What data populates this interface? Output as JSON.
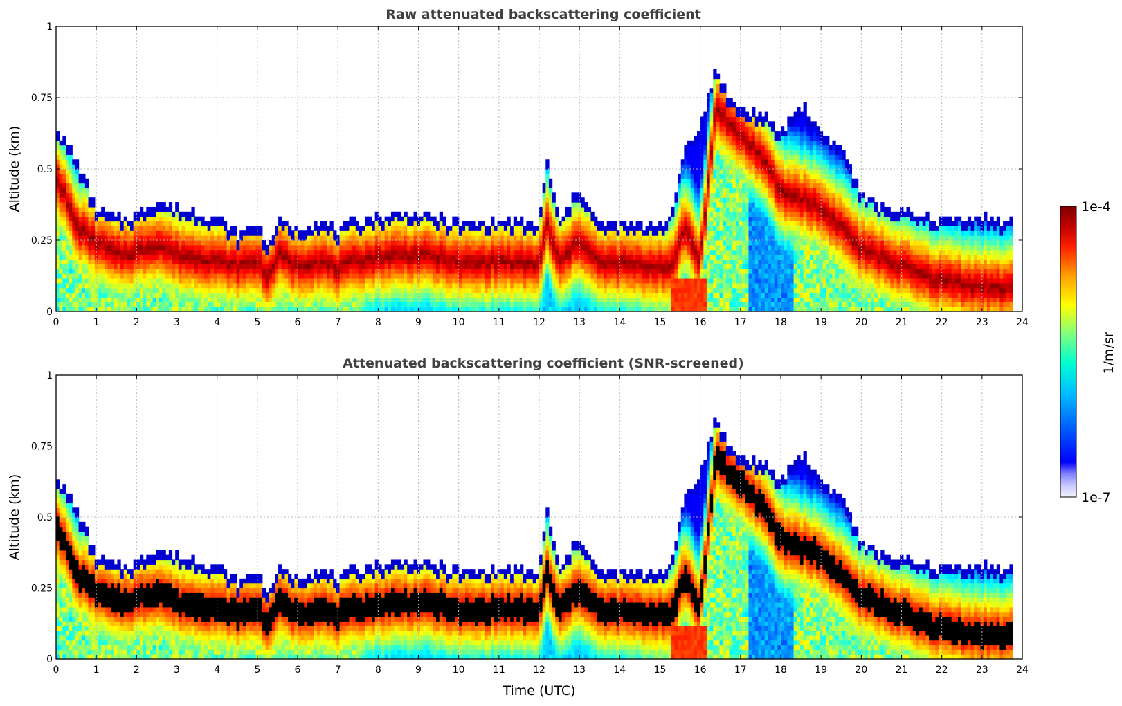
{
  "chart_data": [
    {
      "type": "heatmap",
      "title": "Raw attenuated backscattering coefficient",
      "xlabel": "",
      "ylabel": "Altitude (km)",
      "xlim": [
        0,
        24
      ],
      "ylim": [
        0,
        1
      ],
      "x_ticks": [
        "0",
        "1",
        "2",
        "3",
        "4",
        "5",
        "6",
        "7",
        "8",
        "9",
        "10",
        "11",
        "12",
        "13",
        "14",
        "15",
        "16",
        "17",
        "18",
        "19",
        "20",
        "21",
        "22",
        "23",
        "24"
      ],
      "y_ticks": [
        "0",
        "0.25",
        "0.5",
        "0.75",
        "1"
      ],
      "grid": true,
      "screened": false,
      "layer_top_km": [
        [
          0,
          0.62
        ],
        [
          0.5,
          0.5
        ],
        [
          1,
          0.33
        ],
        [
          1.5,
          0.3
        ],
        [
          2,
          0.31
        ],
        [
          2.5,
          0.36
        ],
        [
          3,
          0.33
        ],
        [
          3.5,
          0.32
        ],
        [
          4,
          0.3
        ],
        [
          4.5,
          0.24
        ],
        [
          5,
          0.28
        ],
        [
          5.3,
          0.2
        ],
        [
          5.5,
          0.29
        ],
        [
          6,
          0.26
        ],
        [
          6.5,
          0.29
        ],
        [
          7,
          0.25
        ],
        [
          7.5,
          0.29
        ],
        [
          8,
          0.3
        ],
        [
          8.5,
          0.32
        ],
        [
          9,
          0.31
        ],
        [
          9.5,
          0.3
        ],
        [
          10,
          0.28
        ],
        [
          10.5,
          0.28
        ],
        [
          11,
          0.29
        ],
        [
          11.5,
          0.28
        ],
        [
          12,
          0.28
        ],
        [
          12.2,
          0.5
        ],
        [
          12.5,
          0.28
        ],
        [
          13,
          0.4
        ],
        [
          13.5,
          0.27
        ],
        [
          14,
          0.28
        ],
        [
          14.5,
          0.27
        ],
        [
          15,
          0.28
        ],
        [
          15.3,
          0.3
        ],
        [
          15.6,
          0.55
        ],
        [
          16,
          0.62
        ],
        [
          16.4,
          0.83
        ],
        [
          16.7,
          0.72
        ],
        [
          17,
          0.68
        ],
        [
          17.5,
          0.66
        ],
        [
          18,
          0.6
        ],
        [
          18.5,
          0.7
        ],
        [
          19,
          0.6
        ],
        [
          19.5,
          0.55
        ],
        [
          20,
          0.38
        ],
        [
          20.5,
          0.34
        ],
        [
          21,
          0.32
        ],
        [
          21.5,
          0.3
        ],
        [
          22,
          0.29
        ],
        [
          22.5,
          0.3
        ],
        [
          23,
          0.3
        ],
        [
          23.7,
          0.28
        ]
      ],
      "peak_km": [
        [
          0,
          0.48
        ],
        [
          0.5,
          0.3
        ],
        [
          1,
          0.24
        ],
        [
          1.5,
          0.2
        ],
        [
          2,
          0.21
        ],
        [
          2.5,
          0.24
        ],
        [
          3,
          0.2
        ],
        [
          3.5,
          0.19
        ],
        [
          4,
          0.18
        ],
        [
          4.5,
          0.16
        ],
        [
          5,
          0.18
        ],
        [
          5.3,
          0.12
        ],
        [
          5.5,
          0.2
        ],
        [
          6,
          0.16
        ],
        [
          6.5,
          0.18
        ],
        [
          7,
          0.15
        ],
        [
          7.5,
          0.18
        ],
        [
          8,
          0.19
        ],
        [
          8.5,
          0.2
        ],
        [
          9,
          0.2
        ],
        [
          9.5,
          0.19
        ],
        [
          10,
          0.17
        ],
        [
          10.5,
          0.17
        ],
        [
          11,
          0.18
        ],
        [
          11.5,
          0.17
        ],
        [
          12,
          0.17
        ],
        [
          12.2,
          0.3
        ],
        [
          12.5,
          0.17
        ],
        [
          13,
          0.25
        ],
        [
          13.5,
          0.17
        ],
        [
          14,
          0.17
        ],
        [
          14.5,
          0.16
        ],
        [
          15,
          0.16
        ],
        [
          15.3,
          0.15
        ],
        [
          15.6,
          0.3
        ],
        [
          16,
          0.18
        ],
        [
          16.4,
          0.72
        ],
        [
          16.7,
          0.66
        ],
        [
          17,
          0.62
        ],
        [
          17.5,
          0.55
        ],
        [
          18,
          0.42
        ],
        [
          18.5,
          0.4
        ],
        [
          19,
          0.36
        ],
        [
          19.5,
          0.3
        ],
        [
          20,
          0.22
        ],
        [
          20.5,
          0.19
        ],
        [
          21,
          0.16
        ],
        [
          21.5,
          0.13
        ],
        [
          22,
          0.11
        ],
        [
          22.5,
          0.1
        ],
        [
          23,
          0.09
        ],
        [
          23.7,
          0.08
        ]
      ],
      "data_end_hour": 23.75
    },
    {
      "type": "heatmap",
      "title": "Attenuated backscattering coefficient (SNR-screened)",
      "xlabel": "Time (UTC)",
      "ylabel": "Altitude (km)",
      "xlim": [
        0,
        24
      ],
      "ylim": [
        0,
        1
      ],
      "x_ticks": [
        "0",
        "1",
        "2",
        "3",
        "4",
        "5",
        "6",
        "7",
        "8",
        "9",
        "10",
        "11",
        "12",
        "13",
        "14",
        "15",
        "16",
        "17",
        "18",
        "19",
        "20",
        "21",
        "22",
        "23",
        "24"
      ],
      "y_ticks": [
        "0",
        "0.25",
        "0.5",
        "0.75",
        "1"
      ],
      "grid": true,
      "screened": true,
      "data_end_hour": 23.75
    }
  ],
  "colorbar": {
    "label": "1/m/sr",
    "max_label": "1e-4",
    "min_label": "1e-7",
    "range": [
      1e-07,
      0.0001
    ],
    "scale": "log",
    "colormap": "jet",
    "low_colors": [
      "#e8e8ff",
      "#c8c8ff",
      "#9090ff",
      "#3030ff",
      "#0000ff"
    ],
    "high_color": "#800000",
    "screened_fill": "#000000"
  }
}
